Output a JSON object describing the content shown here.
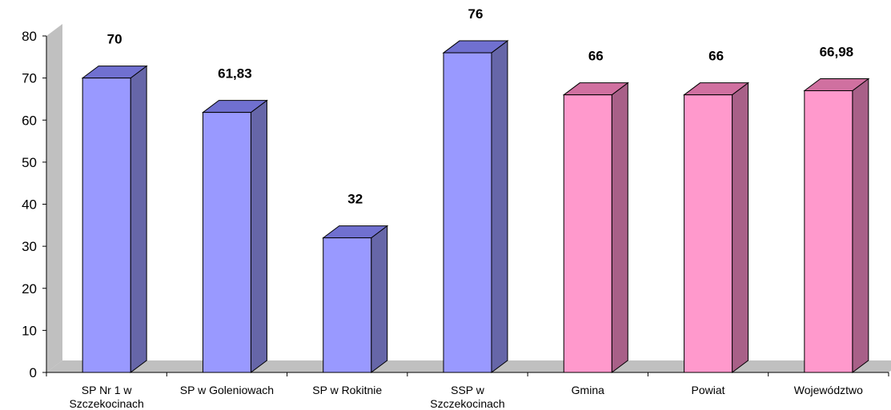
{
  "chart_data": {
    "type": "bar",
    "categories": [
      [
        "SP Nr 1 w",
        "Szczekocinach"
      ],
      [
        "SP w Goleniowach"
      ],
      [
        "SP w Rokitnie"
      ],
      [
        "SSP w",
        "Szczekocinach"
      ],
      [
        "Gmina"
      ],
      [
        "Powiat"
      ],
      [
        "Województwo"
      ]
    ],
    "values": [
      70,
      61.83,
      32,
      76,
      66,
      66,
      66.98
    ],
    "data_labels": [
      "70",
      "61,83",
      "32",
      "76",
      "66",
      "66",
      "66,98"
    ],
    "y_ticks": [
      "0",
      "10",
      "20",
      "30",
      "40",
      "50",
      "60",
      "70",
      "80"
    ],
    "ylim": [
      0,
      80
    ],
    "title": "",
    "xlabel": "",
    "ylabel": "",
    "grid": false,
    "three_d": true,
    "colors": {
      "blue_front": "#9999ff",
      "blue_side": "#6666a8",
      "blue_top": "#7070d0",
      "pink_front": "#ff99cc",
      "pink_side": "#a86088",
      "pink_top": "#d070a0",
      "wall": "#c0c0c0",
      "floor": "#c0c0c0"
    },
    "bar_color_groups": [
      "blue",
      "blue",
      "blue",
      "blue",
      "pink",
      "pink",
      "pink"
    ]
  }
}
